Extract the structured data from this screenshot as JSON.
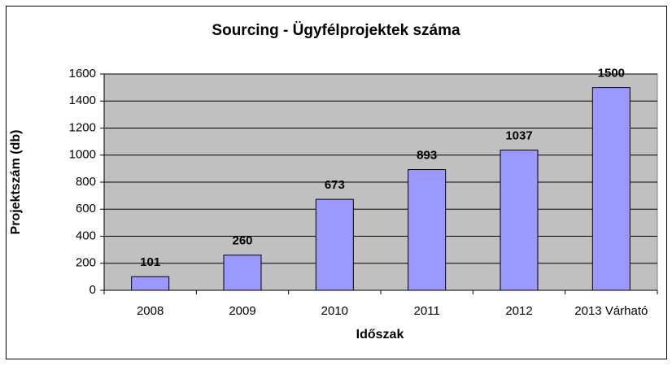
{
  "chart_data": {
    "type": "bar",
    "title": "Sourcing - Ügyfélprojektek száma",
    "x_label": "Időszak",
    "y_label": "Projektszám (db)",
    "categories": [
      "2008",
      "2009",
      "2010",
      "2011",
      "2012",
      "2013 Várható"
    ],
    "values": [
      101,
      260,
      673,
      893,
      1037,
      1500
    ],
    "color": "#9999ff",
    "plot_background": "#c0c0c0",
    "ylim": [
      0,
      1600
    ],
    "yticks": [
      0,
      200,
      400,
      600,
      800,
      1000,
      1200,
      1400,
      1600
    ],
    "grid": true,
    "data_labels": true
  }
}
